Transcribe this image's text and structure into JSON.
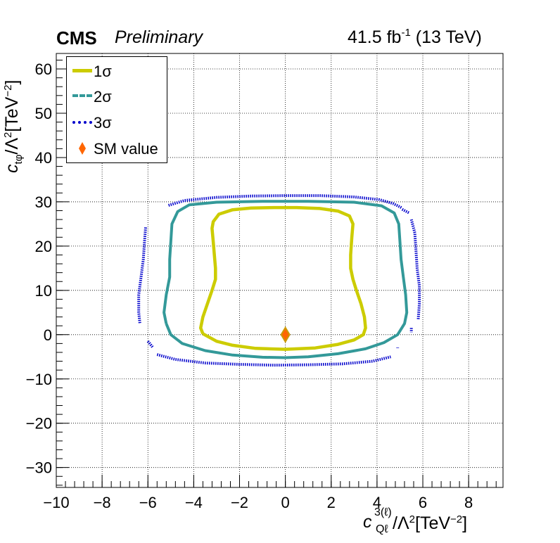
{
  "header": {
    "experiment": "CMS",
    "status": "Preliminary",
    "lumi_value": "41.5 fb",
    "lumi_exp": "-1",
    "energy": "(13 TeV)"
  },
  "chart_data": {
    "type": "contour",
    "xlabel": {
      "base": "c",
      "sup": "3(ℓ)",
      "sub": "Qℓ",
      "rest": "/Λ",
      "rest_sup": "2",
      "unit": "[TeV",
      "unit_sup": "−2",
      "unit_end": "]"
    },
    "ylabel": {
      "base": "c",
      "sub": "tφ",
      "rest": "/Λ",
      "rest_sup": "2",
      "unit": "[TeV",
      "unit_sup": "−2",
      "unit_end": "]"
    },
    "xlim": [
      -10,
      9.5
    ],
    "ylim": [
      -34.5,
      63.5
    ],
    "xticks": [
      -10,
      -8,
      -6,
      -4,
      -2,
      0,
      2,
      4,
      6,
      8
    ],
    "yticks": [
      -30,
      -20,
      -10,
      0,
      10,
      20,
      30,
      40,
      50,
      60
    ],
    "grid": true,
    "legend_position": "top-left",
    "legend": [
      "1σ",
      "2σ",
      "3σ",
      "SM value"
    ],
    "colors": {
      "one_sigma": "#cccc00",
      "two_sigma": "#339999",
      "three_sigma": "#0000cc",
      "sm_fill": "#ff6600",
      "sm_edge": "#cc9900"
    },
    "contours": [
      {
        "name": "1σ",
        "style": "solid",
        "points": [
          [
            -3.6,
            0.2
          ],
          [
            -3.7,
            1.5
          ],
          [
            -3.6,
            4
          ],
          [
            -3.4,
            7
          ],
          [
            -3.2,
            10
          ],
          [
            -3.05,
            12.5
          ],
          [
            -3.05,
            15
          ],
          [
            -3.1,
            18
          ],
          [
            -3.15,
            21
          ],
          [
            -3.2,
            24
          ],
          [
            -3.15,
            25.5
          ],
          [
            -2.9,
            27.2
          ],
          [
            -2.3,
            28.2
          ],
          [
            -1.5,
            28.6
          ],
          [
            -0.5,
            28.7
          ],
          [
            0.5,
            28.7
          ],
          [
            1.5,
            28.5
          ],
          [
            2.3,
            27.9
          ],
          [
            2.8,
            26.8
          ],
          [
            2.95,
            25
          ],
          [
            2.9,
            22
          ],
          [
            2.85,
            18
          ],
          [
            2.85,
            15
          ],
          [
            2.95,
            12.5
          ],
          [
            3.1,
            10
          ],
          [
            3.3,
            7
          ],
          [
            3.45,
            4
          ],
          [
            3.5,
            1.5
          ],
          [
            3.4,
            0
          ],
          [
            3.0,
            -1.2
          ],
          [
            2.3,
            -2.2
          ],
          [
            1.3,
            -3
          ],
          [
            0,
            -3.3
          ],
          [
            -1.3,
            -3.1
          ],
          [
            -2.3,
            -2.4
          ],
          [
            -3.0,
            -1.5
          ],
          [
            -3.6,
            0.2
          ]
        ]
      },
      {
        "name": "2σ",
        "style": "solid",
        "points": [
          [
            -5.2,
            2.5
          ],
          [
            -5.3,
            5
          ],
          [
            -5.2,
            9
          ],
          [
            -5.05,
            13
          ],
          [
            -5.05,
            17
          ],
          [
            -5.0,
            21
          ],
          [
            -4.95,
            25
          ],
          [
            -4.7,
            27.8
          ],
          [
            -4.2,
            29.3
          ],
          [
            -3,
            29.9
          ],
          [
            -1,
            30.1
          ],
          [
            1,
            30.1
          ],
          [
            3,
            29.9
          ],
          [
            4.2,
            29.1
          ],
          [
            4.75,
            27.5
          ],
          [
            4.95,
            25
          ],
          [
            5.0,
            21
          ],
          [
            5.05,
            17
          ],
          [
            5.15,
            13
          ],
          [
            5.25,
            9
          ],
          [
            5.3,
            5
          ],
          [
            5.2,
            2.5
          ],
          [
            4.9,
            0
          ],
          [
            4.3,
            -1.8
          ],
          [
            3.5,
            -3.2
          ],
          [
            2.3,
            -4.3
          ],
          [
            1,
            -5
          ],
          [
            0,
            -5.2
          ],
          [
            -1,
            -5.1
          ],
          [
            -2.3,
            -4.6
          ],
          [
            -3.5,
            -3.6
          ],
          [
            -4.5,
            -2
          ],
          [
            -5.0,
            0
          ],
          [
            -5.2,
            2.5
          ]
        ]
      },
      {
        "name": "3σ",
        "style": "dotted",
        "segments": [
          [
            [
              -5.1,
              29.2
            ],
            [
              -4.4,
              30.3
            ],
            [
              -3,
              31
            ],
            [
              -1.5,
              31.3
            ],
            [
              0,
              31.4
            ],
            [
              1.5,
              31.4
            ],
            [
              3,
              31.1
            ],
            [
              4.1,
              30.5
            ],
            [
              4.7,
              29.6
            ],
            [
              5.1,
              28.6
            ]
          ],
          [
            [
              5.1,
              28.3
            ],
            [
              5.4,
              27.5
            ]
          ],
          [
            [
              5.5,
              26
            ],
            [
              5.65,
              23
            ],
            [
              5.7,
              19
            ],
            [
              5.75,
              15
            ],
            [
              5.85,
              11
            ],
            [
              5.85,
              7
            ],
            [
              5.8,
              3.5
            ]
          ],
          [
            [
              5.5,
              1.5
            ],
            [
              5.5,
              0.5
            ]
          ],
          [
            [
              -6.1,
              24.2
            ],
            [
              -6.15,
              21
            ],
            [
              -6.2,
              17
            ],
            [
              -6.3,
              13
            ],
            [
              -6.4,
              9
            ],
            [
              -6.4,
              5
            ],
            [
              -6.35,
              2.5
            ]
          ],
          [
            [
              -6.0,
              -1.5
            ],
            [
              -5.8,
              -2.8
            ]
          ],
          [
            [
              -5.6,
              -4.5
            ],
            [
              -4.8,
              -5.6
            ],
            [
              -3.5,
              -6.4
            ],
            [
              -2,
              -6.7
            ],
            [
              -0.5,
              -6.9
            ],
            [
              1,
              -6.8
            ],
            [
              2.5,
              -6.6
            ],
            [
              3.8,
              -6
            ],
            [
              4.6,
              -5
            ]
          ],
          [
            [
              4.9,
              -3
            ],
            [
              4.9,
              -2.9
            ]
          ]
        ]
      }
    ],
    "sm_value": {
      "x": 0,
      "y": 0
    }
  }
}
